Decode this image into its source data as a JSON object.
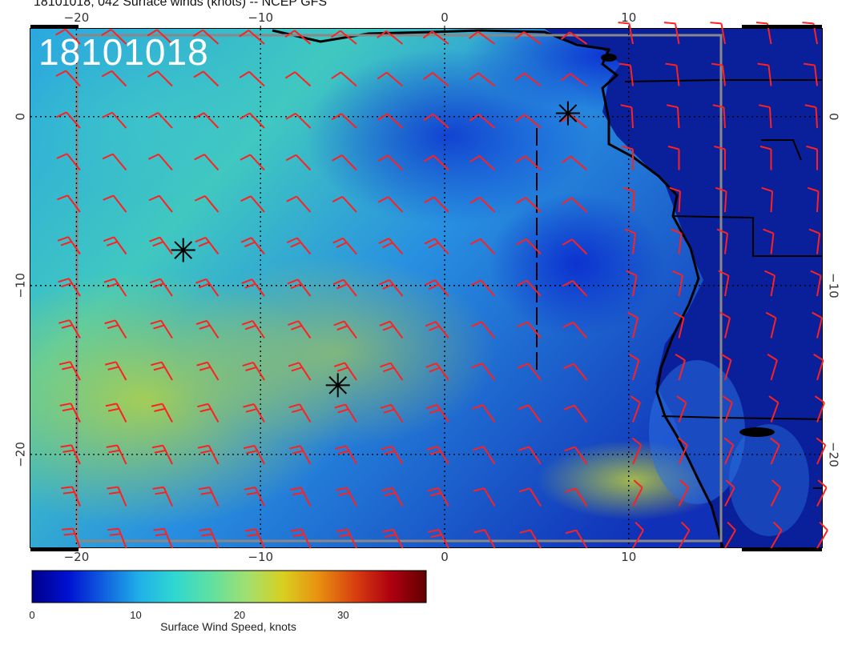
{
  "title": "18101018, 042 Surface winds (knots) -- NCEP GFS",
  "date_label": "18101018",
  "map": {
    "lon_ticks": [
      -20,
      -10,
      0,
      10
    ],
    "lat_ticks": [
      0,
      -10,
      -20
    ],
    "lon_range": [
      -22.5,
      20.5
    ],
    "lat_range": [
      -25.5,
      5.2
    ],
    "grid_lons": [
      -20,
      -10,
      0,
      10
    ],
    "grid_lats": [
      0,
      -10,
      -20
    ],
    "land_color": "#0a1f9a",
    "barb_color": "#ff2020",
    "markers": [
      {
        "name": "cyclone-marker",
        "lon": 6.7,
        "lat": 0.2
      },
      {
        "name": "cyclone-marker",
        "lon": -14.2,
        "lat": -7.9
      },
      {
        "name": "cyclone-marker",
        "lon": -5.8,
        "lat": -15.9
      }
    ]
  },
  "colorbar": {
    "label": "Surface Wind Speed, knots",
    "min": 0,
    "max": 38,
    "ticks": [
      0,
      10,
      20,
      30
    ],
    "stops": [
      "#00008a",
      "#0010d0",
      "#1060e0",
      "#20b0e8",
      "#30d8d0",
      "#60e0a0",
      "#a0e070",
      "#d8d020",
      "#e89010",
      "#d84010",
      "#b00010",
      "#600000"
    ]
  }
}
